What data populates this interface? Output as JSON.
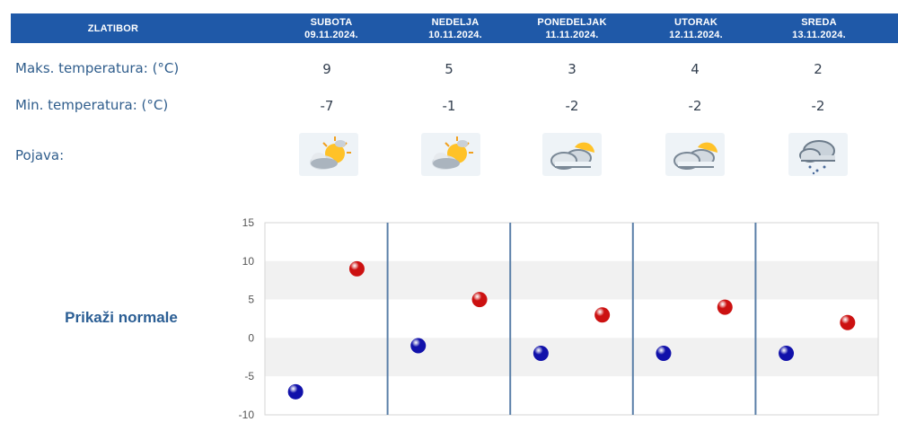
{
  "header": {
    "station": "ZLATIBOR",
    "days": [
      {
        "day": "SUBOTA",
        "date": "09.11.2024."
      },
      {
        "day": "NEDELJA",
        "date": "10.11.2024."
      },
      {
        "day": "PONEDELJAK",
        "date": "11.11.2024."
      },
      {
        "day": "UTORAK",
        "date": "12.11.2024."
      },
      {
        "day": "SREDA",
        "date": "13.11.2024."
      }
    ]
  },
  "rows": {
    "max_label": "Maks. temperatura: (°C)",
    "min_label": "Min. temperatura: (°C)",
    "phenomenon_label": "Pojava:",
    "max_values": [
      "9",
      "5",
      "3",
      "4",
      "2"
    ],
    "min_values": [
      "-7",
      "-1",
      "-2",
      "-2",
      "-2"
    ],
    "icons": [
      "sun-behind-cloud-icon",
      "sun-behind-cloud-icon",
      "cloud-with-sun-icon",
      "cloud-with-sun-icon",
      "rain-cloud-icon"
    ]
  },
  "show_normals": "Prikaži normale",
  "colors": {
    "header_bg": "#1f59a8",
    "max_point": "#cc1111",
    "min_point": "#1111aa",
    "day_divider": "#5a7fa8"
  },
  "chart_data": {
    "type": "scatter",
    "ylim": [
      -10,
      15
    ],
    "yticks": [
      15,
      10,
      5,
      0,
      -5,
      -10
    ],
    "grid": true,
    "series": [
      {
        "values": [
          9,
          5,
          3,
          4,
          2
        ]
      },
      {
        "values": [
          -7,
          -1,
          -2,
          -2,
          -2
        ]
      }
    ]
  }
}
